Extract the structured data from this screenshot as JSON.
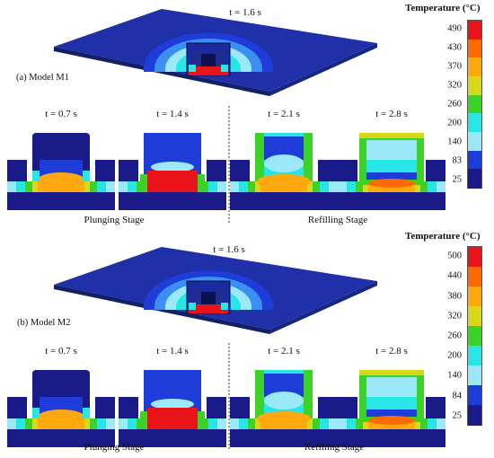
{
  "panel_a": {
    "label": "(a)   Model M1",
    "overview_time": "t = 1.6 s",
    "times": [
      "t = 0.7 s",
      "t = 1.4 s",
      "t = 2.1 s",
      "t = 2.8 s"
    ],
    "stages": [
      "Plunging Stage",
      "Refilling Stage"
    ],
    "legend": {
      "title": "Temperature (°C)",
      "ticks": [
        "490",
        "430",
        "370",
        "320",
        "260",
        "200",
        "140",
        "83",
        "25"
      ],
      "colors": [
        "#e8141a",
        "#ff6a00",
        "#ffa810",
        "#d8d81a",
        "#3cd22a",
        "#28e6e6",
        "#9ae8f8",
        "#1d3cd8",
        "#1a1a88"
      ]
    }
  },
  "panel_b": {
    "label": "(b)   Model M2",
    "overview_time": "t = 1.6 s",
    "times": [
      "t = 0.7 s",
      "t = 1.4 s",
      "t = 2.1 s",
      "t = 2.8 s"
    ],
    "stages": [
      "Plunging Stage",
      "Refilling Stage"
    ],
    "legend": {
      "title": "Temperature (°C)",
      "ticks": [
        "500",
        "440",
        "380",
        "320",
        "260",
        "200",
        "140",
        "84",
        "25"
      ],
      "colors": [
        "#e8141a",
        "#ff6a00",
        "#ffa810",
        "#d8d81a",
        "#3cd22a",
        "#28e6e6",
        "#9ae8f8",
        "#1d3cd8",
        "#1a1a88"
      ]
    }
  }
}
